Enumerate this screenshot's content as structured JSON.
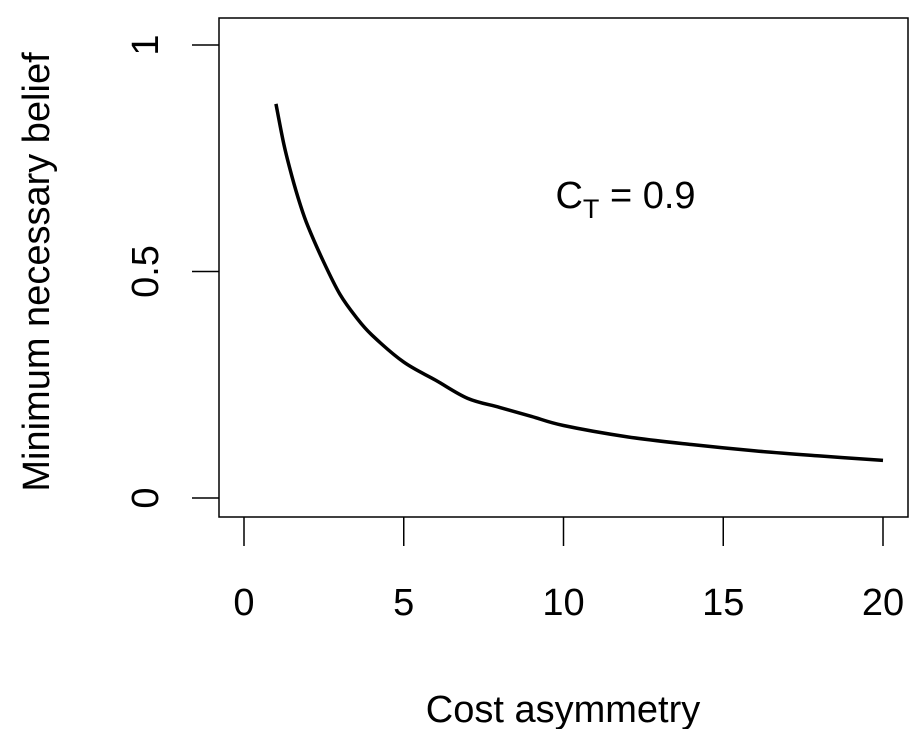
{
  "chart_data": {
    "type": "line",
    "xlabel": "Cost asymmetry",
    "ylabel": "Minimum necessary belief",
    "xlim": [
      0,
      20
    ],
    "ylim": [
      0,
      1
    ],
    "x_ticks": [
      0,
      5,
      10,
      15,
      20
    ],
    "x_tick_labels": [
      "0",
      "5",
      "10",
      "15",
      "20"
    ],
    "y_ticks": [
      0,
      0.5,
      1
    ],
    "y_tick_labels": [
      "0",
      "0.5",
      "1"
    ],
    "grid": false,
    "annotation": {
      "base": "C",
      "subscript": "T",
      "rest": " = 0.9",
      "x": 10.5,
      "y": 0.6
    },
    "series": [
      {
        "color": "#000000",
        "x": [
          1,
          1.25,
          1.5,
          1.75,
          2,
          2.5,
          3,
          3.5,
          4,
          5,
          6,
          7,
          8,
          9,
          10,
          12,
          14,
          16,
          18,
          20
        ],
        "y": [
          0.87,
          0.78,
          0.71,
          0.65,
          0.6,
          0.52,
          0.45,
          0.4,
          0.36,
          0.3,
          0.26,
          0.22,
          0.2,
          0.18,
          0.16,
          0.135,
          0.118,
          0.104,
          0.093,
          0.083
        ]
      }
    ]
  }
}
